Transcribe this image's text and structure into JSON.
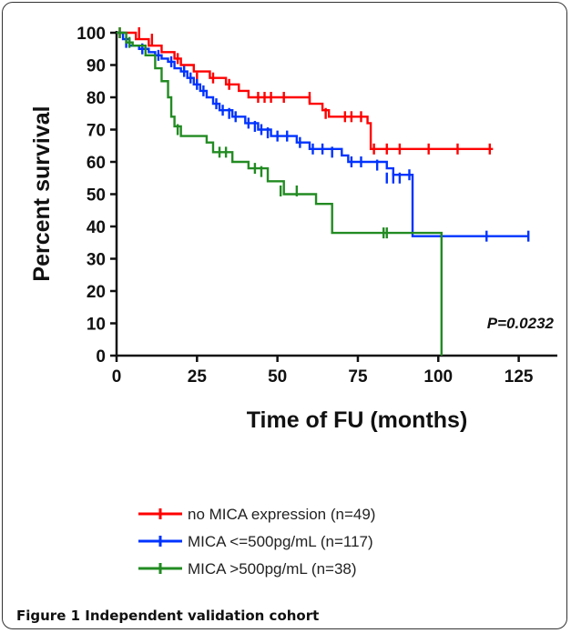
{
  "figure_caption": "Figure 1 Independent validation cohort",
  "chart_data": {
    "type": "line",
    "subtype": "kaplan-meier",
    "xlabel": "Time of FU (months)",
    "ylabel": "Percent survival",
    "xlim": [
      0,
      137
    ],
    "ylim": [
      0,
      100
    ],
    "xticks": [
      0,
      25,
      50,
      75,
      100,
      125
    ],
    "yticks": [
      0,
      10,
      20,
      30,
      40,
      50,
      60,
      70,
      80,
      90,
      100
    ],
    "annotation": "P=0.0232",
    "legend_position": "bottom",
    "series": [
      {
        "name": "no MICA expression (n=49)",
        "color": "#ff0000",
        "steps": [
          [
            0,
            100
          ],
          [
            6,
            98
          ],
          [
            10,
            96
          ],
          [
            14,
            94
          ],
          [
            18,
            92
          ],
          [
            20,
            90
          ],
          [
            24,
            88
          ],
          [
            29,
            86
          ],
          [
            34,
            84
          ],
          [
            38,
            82
          ],
          [
            41,
            80
          ],
          [
            60,
            78
          ],
          [
            64,
            76
          ],
          [
            66,
            74
          ],
          [
            78,
            72
          ],
          [
            79,
            64
          ],
          [
            117,
            64
          ]
        ],
        "censored": [
          [
            1,
            100
          ],
          [
            7,
            100
          ],
          [
            11,
            98
          ],
          [
            19,
            92
          ],
          [
            25,
            86
          ],
          [
            30,
            86
          ],
          [
            35,
            84
          ],
          [
            44,
            80
          ],
          [
            46,
            80
          ],
          [
            48,
            80
          ],
          [
            52,
            80
          ],
          [
            60,
            80
          ],
          [
            65,
            75
          ],
          [
            71,
            74
          ],
          [
            73,
            74
          ],
          [
            76,
            74
          ],
          [
            80,
            64
          ],
          [
            84,
            64
          ],
          [
            88,
            64
          ],
          [
            97,
            64
          ],
          [
            106,
            64
          ],
          [
            116,
            64
          ]
        ]
      },
      {
        "name": "MICA <=500pg/mL (n=117)",
        "color": "#0033ff",
        "steps": [
          [
            0,
            100
          ],
          [
            2,
            98
          ],
          [
            4,
            96
          ],
          [
            7,
            95
          ],
          [
            10,
            94
          ],
          [
            12,
            93
          ],
          [
            14,
            92
          ],
          [
            16,
            91
          ],
          [
            18,
            89
          ],
          [
            20,
            88
          ],
          [
            22,
            86
          ],
          [
            24,
            84
          ],
          [
            26,
            82
          ],
          [
            28,
            80
          ],
          [
            30,
            78
          ],
          [
            32,
            76
          ],
          [
            36,
            74
          ],
          [
            40,
            72
          ],
          [
            44,
            70
          ],
          [
            48,
            68
          ],
          [
            56,
            66
          ],
          [
            60,
            64
          ],
          [
            70,
            62
          ],
          [
            72,
            60
          ],
          [
            84,
            58
          ],
          [
            86,
            56
          ],
          [
            92,
            37
          ],
          [
            128,
            37
          ]
        ],
        "censored": [
          [
            3,
            97
          ],
          [
            8,
            95
          ],
          [
            13,
            93
          ],
          [
            17,
            91
          ],
          [
            21,
            88
          ],
          [
            23,
            86
          ],
          [
            25,
            84
          ],
          [
            27,
            82
          ],
          [
            31,
            78
          ],
          [
            33,
            76
          ],
          [
            35,
            75
          ],
          [
            37,
            74
          ],
          [
            41,
            72
          ],
          [
            43,
            71
          ],
          [
            45,
            70
          ],
          [
            47,
            69
          ],
          [
            50,
            68
          ],
          [
            53,
            68
          ],
          [
            57,
            66
          ],
          [
            61,
            64
          ],
          [
            64,
            64
          ],
          [
            67,
            63
          ],
          [
            73,
            60
          ],
          [
            76,
            60
          ],
          [
            81,
            59
          ],
          [
            84,
            55
          ],
          [
            86,
            55
          ],
          [
            88,
            55
          ],
          [
            91,
            56
          ],
          [
            115,
            37
          ],
          [
            128,
            37
          ]
        ]
      },
      {
        "name": "MICA >500pg/mL (n=38)",
        "color": "#228b22",
        "steps": [
          [
            0,
            100
          ],
          [
            3,
            97
          ],
          [
            5,
            96
          ],
          [
            9,
            93
          ],
          [
            12,
            89
          ],
          [
            14,
            85
          ],
          [
            16,
            80
          ],
          [
            17,
            74
          ],
          [
            18,
            71
          ],
          [
            20,
            68
          ],
          [
            28,
            66
          ],
          [
            30,
            63
          ],
          [
            36,
            60
          ],
          [
            41,
            58
          ],
          [
            47,
            54
          ],
          [
            52,
            50
          ],
          [
            62,
            47
          ],
          [
            67,
            38
          ],
          [
            101,
            38
          ],
          [
            101,
            0
          ]
        ],
        "censored": [
          [
            1,
            100
          ],
          [
            4,
            97
          ],
          [
            19,
            70
          ],
          [
            32,
            63
          ],
          [
            34,
            63
          ],
          [
            43,
            58
          ],
          [
            45,
            57
          ],
          [
            51,
            51
          ],
          [
            56,
            51
          ],
          [
            83,
            38
          ],
          [
            84,
            38
          ]
        ]
      }
    ]
  }
}
